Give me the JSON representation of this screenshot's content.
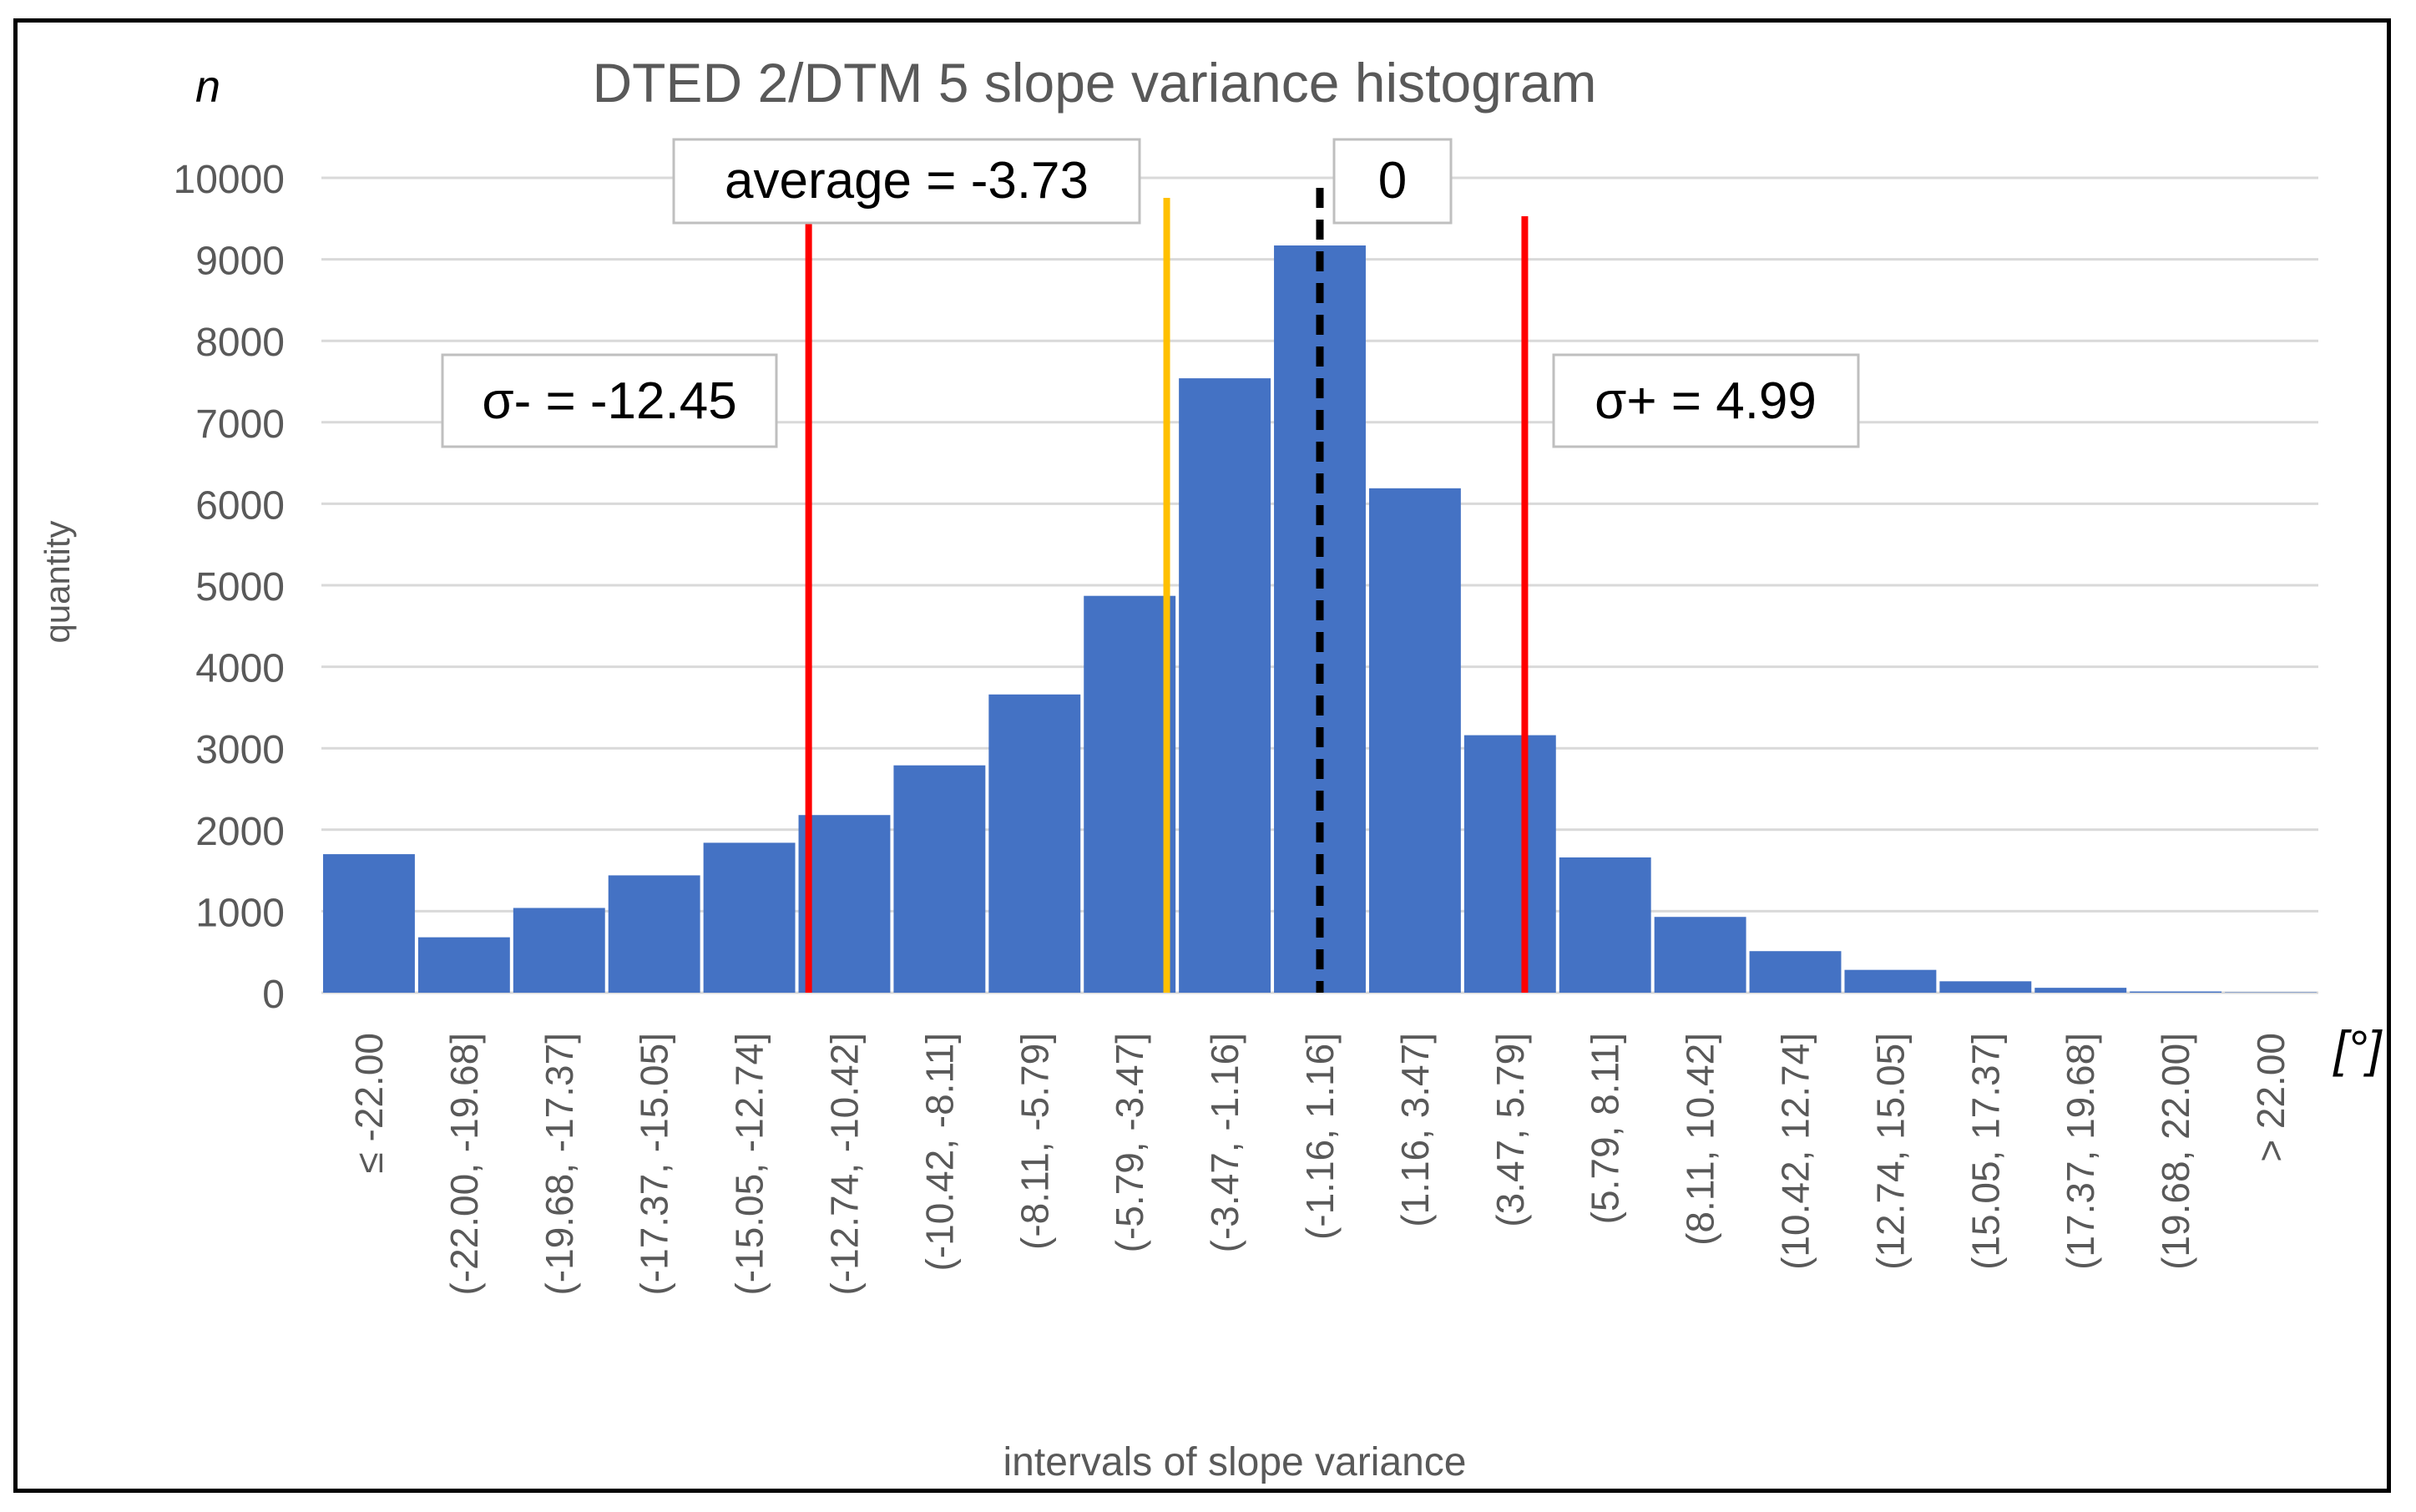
{
  "chart_data": {
    "type": "bar",
    "title": "DTED 2/DTM 5 slope variance histogram",
    "xlabel": "intervals of slope variance",
    "ylabel": "quantity",
    "y_symbol": "n",
    "x_unit": "[°]",
    "ylim": [
      0,
      10000
    ],
    "yticks": [
      0,
      1000,
      2000,
      3000,
      4000,
      5000,
      6000,
      7000,
      8000,
      9000,
      10000
    ],
    "grid": true,
    "bar_color": "#4472C4",
    "categories": [
      "≤ -22.00",
      "(-22.00, -19.68]",
      "(-19.68, -17.37]",
      "(-17.37, -15.05]",
      "(-15.05, -12.74]",
      "(-12.74, -10.42]",
      "(-10.42, -8.11]",
      "(-8.11, -5.79]",
      "(-5.79, -3.47]",
      "(-3.47, -1.16]",
      "(-1.16, 1.16]",
      "(1.16, 3.47]",
      "(3.47, 5.79]",
      "(5.79, 8.11]",
      "(8.11, 10.42]",
      "(10.42, 12.74]",
      "(12.74, 15.05]",
      "(15.05, 17.37]",
      "(17.37, 19.68]",
      "(19.68, 22.00]",
      "> 22.00"
    ],
    "values": [
      1700,
      680,
      1040,
      1440,
      1840,
      2180,
      2790,
      3660,
      4870,
      7540,
      9170,
      6190,
      3160,
      1660,
      930,
      510,
      280,
      140,
      60,
      15,
      5
    ],
    "reference_lines": [
      {
        "name": "sigma-minus",
        "value": -12.45,
        "label": "σ- = -12.45",
        "color": "#FF0000",
        "style": "solid"
      },
      {
        "name": "average",
        "value": -3.73,
        "label": "average = -3.73",
        "color": "#FFC000",
        "style": "solid"
      },
      {
        "name": "zero",
        "value": 0,
        "label": "0",
        "color": "#000000",
        "style": "dashed"
      },
      {
        "name": "sigma-plus",
        "value": 4.99,
        "label": "σ+ = 4.99",
        "color": "#FF0000",
        "style": "solid"
      }
    ]
  }
}
